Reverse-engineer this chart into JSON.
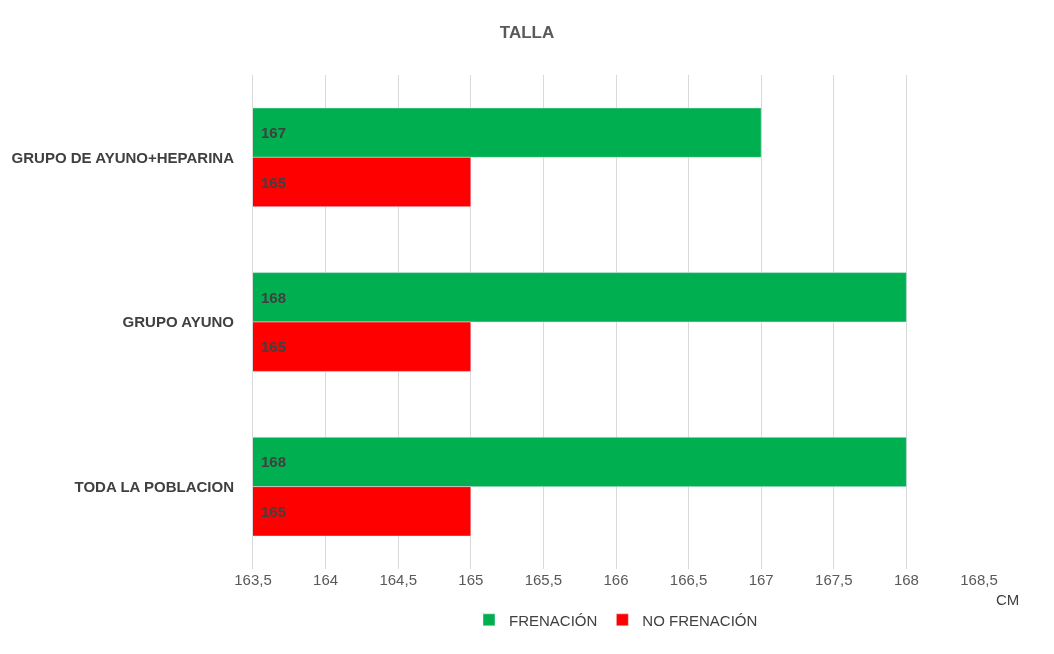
{
  "chart_data": {
    "type": "bar",
    "orientation": "horizontal",
    "title": "TALLA",
    "xlabel": "CM",
    "categories": [
      "GRUPO DE AYUNO+HEPARINA",
      "GRUPO AYUNO",
      "TODA LA POBLACION"
    ],
    "series": [
      {
        "name": "FRENACIÓN",
        "color": "#00b050",
        "values": [
          167,
          168,
          168
        ]
      },
      {
        "name": "NO FRENACIÓN",
        "color": "#ff0000",
        "values": [
          165,
          165,
          165
        ]
      }
    ],
    "xlim": [
      163.5,
      168.5
    ],
    "xticks": [
      {
        "value": 163.5,
        "label": "163,5"
      },
      164,
      {
        "value": 164.5,
        "label": "164,5"
      },
      165,
      {
        "value": 165.5,
        "label": "165,5"
      },
      166,
      {
        "value": 166.5,
        "label": "166,5"
      },
      167,
      {
        "value": 167.5,
        "label": "167,5"
      },
      168,
      {
        "value": 168.5,
        "label": "168,5"
      }
    ],
    "data_labels": true,
    "grid": "x",
    "legend": "bottom"
  }
}
